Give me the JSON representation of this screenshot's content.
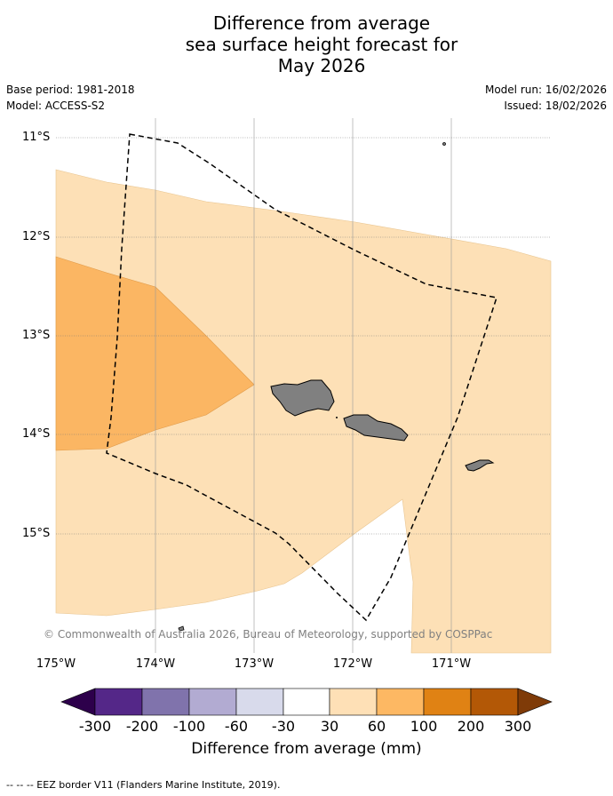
{
  "title_lines": [
    "Difference from average",
    "sea surface height forecast for",
    "May 2026"
  ],
  "meta": {
    "base_period": "Base period: 1981-2018",
    "model": "Model: ACCESS-S2",
    "model_run": "Model run: 16/02/2026",
    "issued": "Issued: 18/02/2026"
  },
  "map": {
    "lat_labels": [
      "11°S",
      "12°S",
      "13°S",
      "14°S",
      "15°S"
    ],
    "lon_labels": [
      "175°W",
      "174°W",
      "173°W",
      "172°W",
      "171°W"
    ],
    "copyright": "© Commonwealth of Australia 2026, Bureau of Meteorology, supported by COSPPac",
    "land_color": "#808080",
    "ocean_light_anomaly_color": "#fde0b6",
    "ocean_medium_anomaly_color": "#fbb663"
  },
  "colorbar": {
    "ticks": [
      "-300",
      "-200",
      "-100",
      "-60",
      "-30",
      "30",
      "60",
      "100",
      "200",
      "300"
    ],
    "colors": [
      "#2d004b",
      "#542788",
      "#8073ac",
      "#b2abd2",
      "#d8daeb",
      "#ffffff",
      "#fee0b6",
      "#fdb863",
      "#e08214",
      "#b35806",
      "#7f3b08"
    ],
    "label": "Difference from average (mm)"
  },
  "footer": "-- -- -- EEZ border V11 (Flanders Marine Institute, 2019)."
}
